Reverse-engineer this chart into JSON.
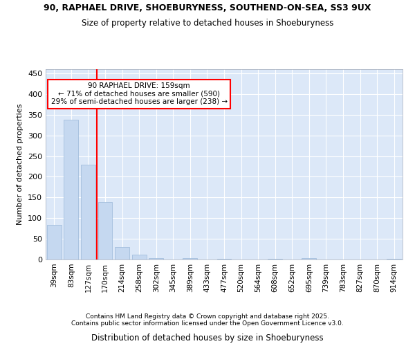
{
  "title1": "90, RAPHAEL DRIVE, SHOEBURYNESS, SOUTHEND-ON-SEA, SS3 9UX",
  "title2": "Size of property relative to detached houses in Shoeburyness",
  "xlabel": "Distribution of detached houses by size in Shoeburyness",
  "ylabel": "Number of detached properties",
  "categories": [
    "39sqm",
    "83sqm",
    "127sqm",
    "170sqm",
    "214sqm",
    "258sqm",
    "302sqm",
    "345sqm",
    "389sqm",
    "433sqm",
    "477sqm",
    "520sqm",
    "564sqm",
    "608sqm",
    "652sqm",
    "695sqm",
    "739sqm",
    "783sqm",
    "827sqm",
    "870sqm",
    "914sqm"
  ],
  "values": [
    83,
    338,
    229,
    139,
    30,
    11,
    4,
    0,
    4,
    0,
    1,
    0,
    0,
    1,
    0,
    3,
    0,
    0,
    0,
    0,
    2
  ],
  "bar_color": "#c5d8f0",
  "bar_edge_color": "#9ab8d8",
  "annotation_text_line1": "90 RAPHAEL DRIVE: 159sqm",
  "annotation_text_line2": "← 71% of detached houses are smaller (590)",
  "annotation_text_line3": "29% of semi-detached houses are larger (238) →",
  "vline_x": 2.5,
  "vline_color": "red",
  "ylim": [
    0,
    460
  ],
  "yticks": [
    0,
    50,
    100,
    150,
    200,
    250,
    300,
    350,
    400,
    450
  ],
  "bg_color": "#dce8f8",
  "footer1": "Contains HM Land Registry data © Crown copyright and database right 2025.",
  "footer2": "Contains public sector information licensed under the Open Government Licence v3.0."
}
